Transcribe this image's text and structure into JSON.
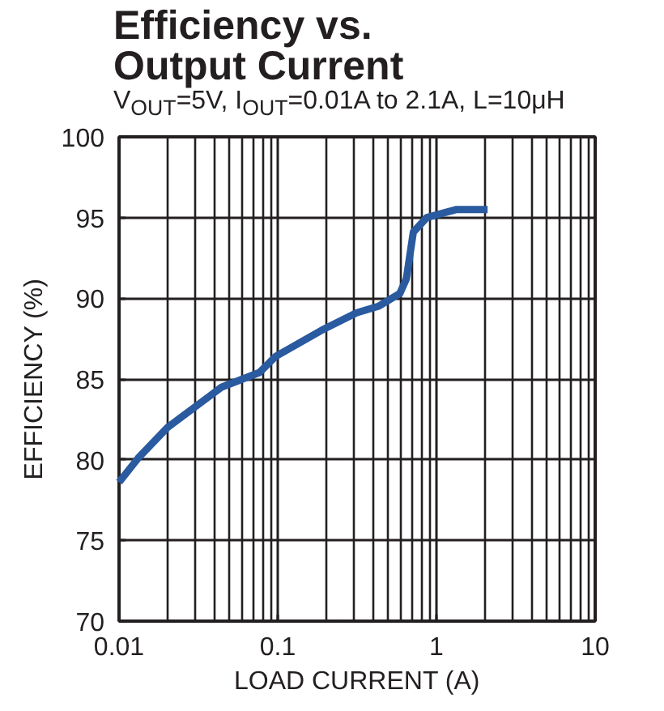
{
  "chart_data": {
    "type": "line",
    "title": "Efficiency vs.\nOutput Current",
    "subtitle": "V$_{OUT}$=5V, I$_{OUT}$=0.01A to 2.1A, L=10μH",
    "xlabel": "LOAD CURRENT (A)",
    "ylabel": "EFFICIENCY (%)",
    "log": "x",
    "xlim": [
      0.01,
      10
    ],
    "ylim": [
      70,
      100
    ],
    "xticks": [
      0.01,
      0.1,
      1,
      10
    ],
    "yticks": [
      70,
      75,
      80,
      85,
      90,
      95,
      100
    ],
    "grid": true,
    "marker": "none",
    "line_style": "solid",
    "series": [
      {
        "color": "#2a5a9f",
        "x": [
          0.01,
          0.0132,
          0.0202,
          0.0444,
          0.0767,
          0.097,
          0.196,
          0.314,
          0.43,
          0.588,
          0.646,
          0.676,
          0.715,
          0.869,
          1.34,
          2.1
        ],
        "values": [
          78.6,
          80.1,
          82.0,
          84.5,
          85.4,
          86.4,
          88.1,
          89.1,
          89.5,
          90.3,
          91.2,
          92.5,
          94.1,
          95.0,
          95.5,
          95.5
        ]
      }
    ]
  }
}
